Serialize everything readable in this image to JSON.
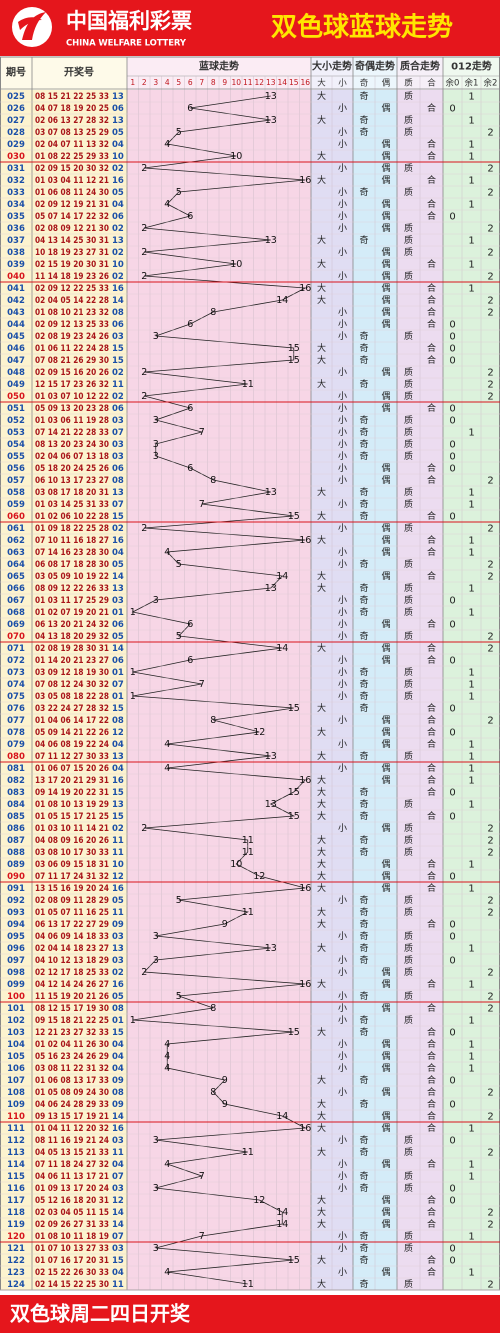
{
  "header": {
    "logo": "中国福利彩票",
    "logo_en": "CHINA WELFARE LOTTERY",
    "title": "双色球蓝球走势"
  },
  "table": {
    "columns": {
      "issue": "期号",
      "draw": "开奖号",
      "trend": "蓝球走势",
      "size": "大小走势",
      "parity": "奇偶走势",
      "prime": "质合走势",
      "mod": "012走势"
    },
    "trend_numbers": [
      1,
      2,
      3,
      4,
      5,
      6,
      7,
      8,
      9,
      10,
      11,
      12,
      13,
      14,
      15,
      16
    ],
    "size_labels": [
      "大",
      "小"
    ],
    "parity_labels": [
      "奇",
      "偶"
    ],
    "prime_labels": [
      "质",
      "合"
    ],
    "mod_labels": [
      "余0",
      "余1",
      "余2"
    ],
    "rows": [
      [
        "025",
        "08 15 21 22 25 33",
        "13",
        13,
        "大",
        "奇",
        "质",
        1
      ],
      [
        "026",
        "04 07 18 19 20 25",
        "06",
        6,
        "小",
        "偶",
        "合",
        0
      ],
      [
        "027",
        "02 06 13 27 28 32",
        "13",
        13,
        "大",
        "奇",
        "质",
        1
      ],
      [
        "028",
        "03 07 08 13 25 29",
        "05",
        5,
        "小",
        "奇",
        "质",
        2
      ],
      [
        "029",
        "02 04 07 11 13 32",
        "04",
        4,
        "小",
        "偶",
        "合",
        1
      ],
      [
        "030",
        "01 08 22 25 29 33",
        "10",
        10,
        "大",
        "偶",
        "合",
        1
      ],
      [
        "031",
        "02 09 15 20 30 32",
        "02",
        2,
        "小",
        "偶",
        "质",
        2
      ],
      [
        "032",
        "01 03 04 11 12 21",
        "16",
        16,
        "大",
        "偶",
        "合",
        1
      ],
      [
        "033",
        "01 06 08 11 24 30",
        "05",
        5,
        "小",
        "奇",
        "质",
        2
      ],
      [
        "034",
        "02 09 12 19 21 31",
        "04",
        4,
        "小",
        "偶",
        "合",
        1
      ],
      [
        "035",
        "05 07 14 17 22 32",
        "06",
        6,
        "小",
        "偶",
        "合",
        0
      ],
      [
        "036",
        "02 08 09 12 21 30",
        "02",
        2,
        "小",
        "偶",
        "质",
        2
      ],
      [
        "037",
        "04 13 14 25 30 31",
        "13",
        13,
        "大",
        "奇",
        "质",
        1
      ],
      [
        "038",
        "10 18 19 23 27 31",
        "02",
        2,
        "小",
        "偶",
        "质",
        2
      ],
      [
        "039",
        "02 15 19 20 30 31",
        "10",
        10,
        "大",
        "偶",
        "合",
        1
      ],
      [
        "040",
        "11 14 18 19 23 26",
        "02",
        2,
        "小",
        "偶",
        "质",
        2
      ],
      [
        "041",
        "02 09 12 22 25 33",
        "16",
        16,
        "大",
        "偶",
        "合",
        1
      ],
      [
        "042",
        "02 04 05 14 22 28",
        "14",
        14,
        "大",
        "偶",
        "合",
        2
      ],
      [
        "043",
        "01 08 10 21 23 32",
        "08",
        8,
        "小",
        "偶",
        "合",
        2
      ],
      [
        "044",
        "02 09 12 13 25 33",
        "06",
        6,
        "小",
        "偶",
        "合",
        0
      ],
      [
        "045",
        "02 08 19 23 24 26",
        "03",
        3,
        "小",
        "奇",
        "质",
        0
      ],
      [
        "046",
        "01 06 11 22 24 28",
        "15",
        15,
        "大",
        "奇",
        "合",
        0
      ],
      [
        "047",
        "07 08 21 26 29 30",
        "15",
        15,
        "大",
        "奇",
        "合",
        0
      ],
      [
        "048",
        "02 09 15 16 20 26",
        "02",
        2,
        "小",
        "偶",
        "质",
        2
      ],
      [
        "049",
        "12 15 17 23 26 32",
        "11",
        11,
        "大",
        "奇",
        "质",
        2
      ],
      [
        "050",
        "01 03 07 10 12 22",
        "02",
        2,
        "小",
        "偶",
        "质",
        2
      ],
      [
        "051",
        "05 09 13 20 23 28",
        "06",
        6,
        "小",
        "偶",
        "合",
        0
      ],
      [
        "052",
        "01 03 06 11 19 28",
        "03",
        3,
        "小",
        "奇",
        "质",
        0
      ],
      [
        "053",
        "07 14 21 22 28 33",
        "07",
        7,
        "小",
        "奇",
        "质",
        1
      ],
      [
        "054",
        "08 13 20 23 24 30",
        "03",
        3,
        "小",
        "奇",
        "质",
        0
      ],
      [
        "055",
        "02 04 06 07 13 18",
        "03",
        3,
        "小",
        "奇",
        "质",
        0
      ],
      [
        "056",
        "05 18 20 24 25 26",
        "06",
        6,
        "小",
        "偶",
        "合",
        0
      ],
      [
        "057",
        "06 10 13 17 23 27",
        "08",
        8,
        "小",
        "偶",
        "合",
        2
      ],
      [
        "058",
        "03 08 17 18 20 31",
        "13",
        13,
        "大",
        "奇",
        "质",
        1
      ],
      [
        "059",
        "01 03 14 25 31 33",
        "07",
        7,
        "小",
        "奇",
        "质",
        1
      ],
      [
        "060",
        "01 02 06 10 22 28",
        "15",
        15,
        "大",
        "奇",
        "合",
        0
      ],
      [
        "061",
        "01 09 18 22 25 28",
        "02",
        2,
        "小",
        "偶",
        "质",
        2
      ],
      [
        "062",
        "07 10 11 16 18 27",
        "16",
        16,
        "大",
        "偶",
        "合",
        1
      ],
      [
        "063",
        "07 14 16 23 28 30",
        "04",
        4,
        "小",
        "偶",
        "合",
        1
      ],
      [
        "064",
        "06 08 17 18 28 30",
        "05",
        5,
        "小",
        "奇",
        "质",
        2
      ],
      [
        "065",
        "03 05 09 10 19 22",
        "14",
        14,
        "大",
        "偶",
        "合",
        2
      ],
      [
        "066",
        "08 09 12 22 26 33",
        "13",
        13,
        "大",
        "奇",
        "质",
        1
      ],
      [
        "067",
        "01 03 11 17 25 29",
        "03",
        3,
        "小",
        "奇",
        "质",
        0
      ],
      [
        "068",
        "01 02 07 19 20 21",
        "01",
        1,
        "小",
        "奇",
        "质",
        1
      ],
      [
        "069",
        "06 13 20 21 24 32",
        "06",
        6,
        "小",
        "偶",
        "合",
        0
      ],
      [
        "070",
        "04 13 18 20 29 32",
        "05",
        5,
        "小",
        "奇",
        "质",
        2
      ],
      [
        "071",
        "02 08 19 28 30 31",
        "14",
        14,
        "大",
        "偶",
        "合",
        2
      ],
      [
        "072",
        "01 14 20 21 23 27",
        "06",
        6,
        "小",
        "偶",
        "合",
        0
      ],
      [
        "073",
        "03 09 12 18 19 30",
        "01",
        1,
        "小",
        "奇",
        "质",
        1
      ],
      [
        "074",
        "07 08 12 24 30 32",
        "07",
        7,
        "小",
        "奇",
        "质",
        1
      ],
      [
        "075",
        "03 05 08 18 22 28",
        "01",
        1,
        "小",
        "奇",
        "质",
        1
      ],
      [
        "076",
        "03 22 24 27 28 32",
        "15",
        15,
        "大",
        "奇",
        "合",
        0
      ],
      [
        "077",
        "01 04 06 14 17 22",
        "08",
        8,
        "小",
        "偶",
        "合",
        2
      ],
      [
        "078",
        "05 09 14 21 22 26",
        "12",
        12,
        "大",
        "偶",
        "合",
        0
      ],
      [
        "079",
        "04 06 08 19 22 24",
        "04",
        4,
        "小",
        "偶",
        "合",
        1
      ],
      [
        "080",
        "07 11 12 27 30 33",
        "13",
        13,
        "大",
        "奇",
        "质",
        1
      ],
      [
        "081",
        "01 06 07 15 20 26",
        "04",
        4,
        "小",
        "偶",
        "合",
        1
      ],
      [
        "082",
        "13 17 20 21 29 31",
        "16",
        16,
        "大",
        "偶",
        "合",
        1
      ],
      [
        "083",
        "09 14 19 20 22 31",
        "15",
        15,
        "大",
        "奇",
        "合",
        0
      ],
      [
        "084",
        "01 08 10 13 19 29",
        "13",
        13,
        "大",
        "奇",
        "质",
        1
      ],
      [
        "085",
        "01 05 15 17 21 25",
        "15",
        15,
        "大",
        "奇",
        "合",
        0
      ],
      [
        "086",
        "01 03 10 11 14 21",
        "02",
        2,
        "小",
        "偶",
        "质",
        2
      ],
      [
        "087",
        "04 08 09 16 20 26",
        "11",
        11,
        "大",
        "奇",
        "质",
        2
      ],
      [
        "088",
        "03 08 10 17 30 33",
        "11",
        11,
        "大",
        "奇",
        "质",
        2
      ],
      [
        "089",
        "03 06 09 15 18 31",
        "10",
        10,
        "大",
        "偶",
        "合",
        1
      ],
      [
        "090",
        "07 11 17 24 31 32",
        "12",
        12,
        "大",
        "偶",
        "合",
        0
      ],
      [
        "091",
        "13 15 16 19 20 24",
        "16",
        16,
        "大",
        "偶",
        "合",
        1
      ],
      [
        "092",
        "02 08 09 11 28 29",
        "05",
        5,
        "小",
        "奇",
        "质",
        2
      ],
      [
        "093",
        "01 05 07 11 16 25",
        "11",
        11,
        "大",
        "奇",
        "质",
        2
      ],
      [
        "094",
        "06 13 17 22 27 29",
        "09",
        9,
        "大",
        "奇",
        "合",
        0
      ],
      [
        "095",
        "04 06 09 14 18 33",
        "03",
        3,
        "小",
        "奇",
        "质",
        0
      ],
      [
        "096",
        "02 04 14 18 23 27",
        "13",
        13,
        "大",
        "奇",
        "质",
        1
      ],
      [
        "097",
        "04 10 12 13 18 29",
        "03",
        3,
        "小",
        "奇",
        "质",
        0
      ],
      [
        "098",
        "02 12 17 18 25 33",
        "02",
        2,
        "小",
        "偶",
        "质",
        2
      ],
      [
        "099",
        "04 12 14 24 26 27",
        "16",
        16,
        "大",
        "偶",
        "合",
        1
      ],
      [
        "100",
        "11 15 19 20 21 26",
        "05",
        5,
        "小",
        "奇",
        "质",
        2
      ],
      [
        "101",
        "08 12 15 17 19 30",
        "08",
        8,
        "小",
        "偶",
        "合",
        2
      ],
      [
        "102",
        "09 15 18 21 22 25",
        "01",
        1,
        "小",
        "奇",
        "质",
        1
      ],
      [
        "103",
        "12 21 23 27 32 33",
        "15",
        15,
        "大",
        "奇",
        "合",
        0
      ],
      [
        "104",
        "01 02 04 11 26 30",
        "04",
        4,
        "小",
        "偶",
        "合",
        1
      ],
      [
        "105",
        "05 16 23 24 26 29",
        "04",
        4,
        "小",
        "偶",
        "合",
        1
      ],
      [
        "106",
        "03 08 11 22 31 32",
        "04",
        4,
        "小",
        "偶",
        "合",
        1
      ],
      [
        "107",
        "01 06 08 13 17 33",
        "09",
        9,
        "大",
        "奇",
        "合",
        0
      ],
      [
        "108",
        "01 05 08 09 24 30",
        "08",
        8,
        "小",
        "偶",
        "合",
        2
      ],
      [
        "109",
        "04 06 24 28 29 33",
        "09",
        9,
        "大",
        "奇",
        "合",
        0
      ],
      [
        "110",
        "09 13 15 17 19 21",
        "14",
        14,
        "大",
        "偶",
        "合",
        2
      ],
      [
        "111",
        "01 04 11 12 20 32",
        "16",
        16,
        "大",
        "偶",
        "合",
        1
      ],
      [
        "112",
        "08 11 16 19 21 24",
        "03",
        3,
        "小",
        "奇",
        "质",
        0
      ],
      [
        "113",
        "04 05 13 15 21 33",
        "11",
        11,
        "大",
        "奇",
        "质",
        2
      ],
      [
        "114",
        "07 11 18 24 27 32",
        "04",
        4,
        "小",
        "偶",
        "合",
        1
      ],
      [
        "115",
        "04 06 11 13 17 21",
        "07",
        7,
        "小",
        "奇",
        "质",
        1
      ],
      [
        "116",
        "01 09 13 17 20 24",
        "03",
        3,
        "小",
        "奇",
        "质",
        0
      ],
      [
        "117",
        "05 12 16 18 20 31",
        "12",
        12,
        "大",
        "偶",
        "合",
        0
      ],
      [
        "118",
        "02 03 04 05 11 15",
        "14",
        14,
        "大",
        "偶",
        "合",
        2
      ],
      [
        "119",
        "02 09 26 27 31 33",
        "14",
        14,
        "大",
        "偶",
        "合",
        2
      ],
      [
        "120",
        "01 08 10 11 18 19",
        "07",
        7,
        "小",
        "奇",
        "质",
        1
      ],
      [
        "121",
        "01 07 10 13 27 33",
        "03",
        3,
        "小",
        "奇",
        "质",
        0
      ],
      [
        "122",
        "01 07 16 17 20 31",
        "15",
        15,
        "大",
        "奇",
        "合",
        0
      ],
      [
        "123",
        "02 15 22 26 30 33",
        "04",
        4,
        "小",
        "偶",
        "合",
        1
      ],
      [
        "124",
        "02 14 15 22 25 30",
        "11",
        11,
        "大",
        "奇",
        "质",
        2
      ]
    ]
  },
  "footer": "双色球周二四日开奖"
}
